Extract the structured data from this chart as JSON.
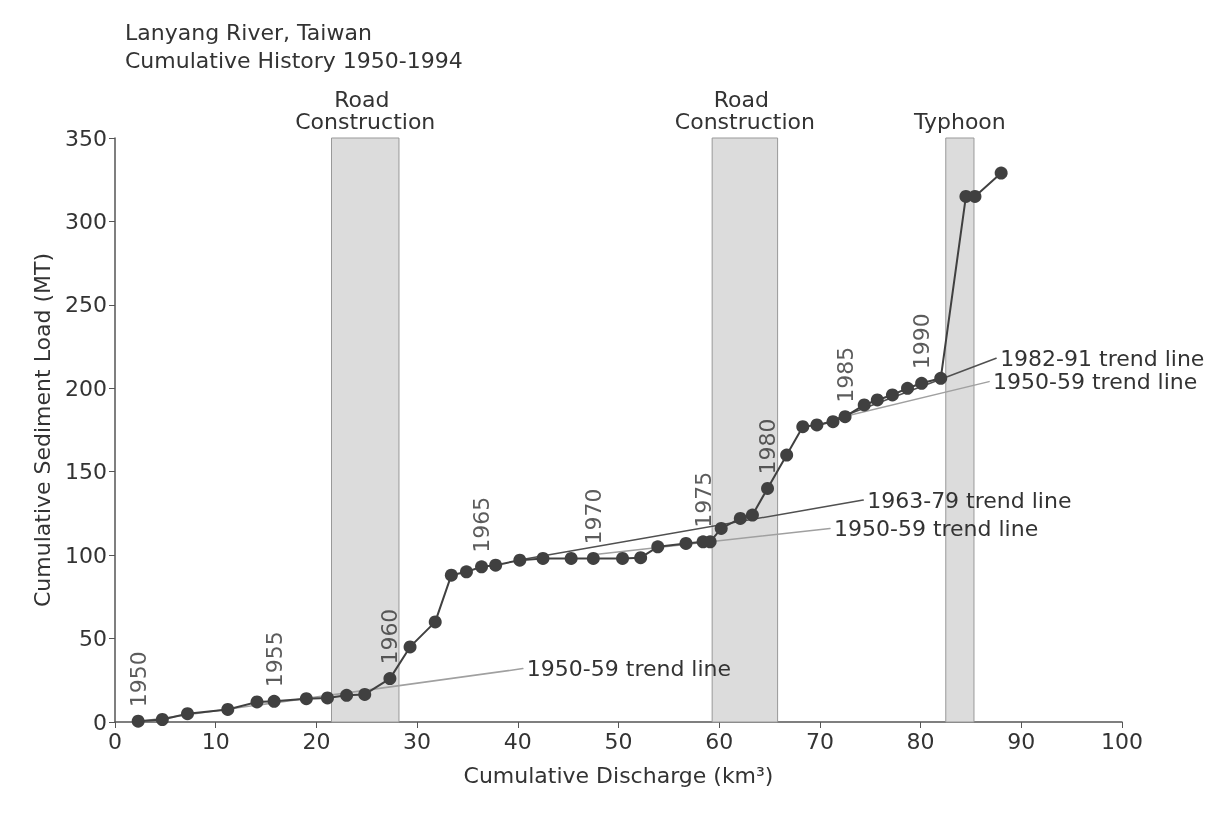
{
  "chart_data": {
    "type": "line",
    "title": "Lanyang River, Taiwan",
    "subtitle": "Cumulative History 1950-1994",
    "xlabel": "Cumulative Discharge (km³)",
    "ylabel": "Cumulative Sediment Load (MT)",
    "xlim": [
      0,
      100
    ],
    "xticks": [
      0,
      10,
      20,
      30,
      40,
      50,
      60,
      70,
      80,
      90,
      100
    ],
    "ylim": [
      0,
      350
    ],
    "yticks": [
      0,
      50,
      100,
      150,
      200,
      250,
      300,
      350
    ],
    "grid": false,
    "legend": false,
    "marker": "circle",
    "line_style": "solid",
    "series": [
      {
        "color": "#404040",
        "x": [
          2.3,
          4.7,
          7.2,
          11.2,
          14.1,
          15.8,
          19,
          21.1,
          23,
          24.8,
          27.3,
          29.3,
          31.8,
          33.4,
          34.9,
          36.4,
          37.8,
          40.2,
          42.5,
          45.3,
          47.5,
          50.4,
          52.2,
          53.9,
          56.7,
          58.4,
          59.1,
          60.2,
          62.1,
          63.3,
          64.8,
          66.7,
          68.3,
          69.7,
          71.3,
          72.5,
          74.4,
          75.7,
          77.2,
          78.7,
          80.1,
          82,
          84.5,
          85.4,
          88
        ],
        "values": [
          0.5,
          1.5,
          5,
          7.5,
          12,
          12.4,
          14,
          14.4,
          16,
          16.5,
          26,
          45,
          60,
          88,
          90,
          93,
          94,
          97,
          98,
          98,
          98,
          98,
          98.5,
          105,
          107,
          108,
          108,
          116,
          122,
          124,
          140,
          160,
          177,
          178,
          180,
          183,
          190,
          193,
          196,
          200,
          203,
          206,
          315,
          315,
          329
        ]
      },
      {
        "name": "1950-59 trend line",
        "type": "line",
        "marker": "none",
        "color": "#a0a0a0",
        "x": [
          2,
          40.5
        ],
        "values": [
          0,
          32
        ]
      },
      {
        "name": "1950-59 trend line",
        "type": "line",
        "marker": "none",
        "color": "#a0a0a0",
        "x": [
          47,
          71
        ],
        "values": [
          100,
          116
        ]
      },
      {
        "name": "1950-59 trend line",
        "type": "line",
        "marker": "none",
        "color": "#a0a0a0",
        "x": [
          71,
          86.8
        ],
        "values": [
          181,
          204
        ]
      },
      {
        "name": "1963-79 trend line",
        "type": "line",
        "marker": "none",
        "color": "#505050",
        "x": [
          40,
          74.3
        ],
        "values": [
          97,
          133
        ]
      },
      {
        "name": "1982-91 trend line",
        "type": "line",
        "marker": "none",
        "color": "#505050",
        "x": [
          70,
          87.5
        ],
        "values": [
          178,
          218
        ]
      }
    ],
    "bands": [
      {
        "axis": "x",
        "from": 21.5,
        "to": 28.2,
        "label": "Road Construction",
        "color": "#dcdcdc"
      },
      {
        "axis": "x",
        "from": 59.3,
        "to": 65.8,
        "label": "Road Construction",
        "color": "#dcdcdc"
      },
      {
        "axis": "x",
        "from": 82.5,
        "to": 85.3,
        "label": "Typhoon",
        "color": "#dcdcdc"
      }
    ],
    "annotations": [
      {
        "text": "1950",
        "x": 2.3,
        "y": 0.5
      },
      {
        "text": "1955",
        "x": 15.8,
        "y": 12.4
      },
      {
        "text": "1960",
        "x": 27.3,
        "y": 26
      },
      {
        "text": "1965",
        "x": 36.4,
        "y": 93
      },
      {
        "text": "1970",
        "x": 47.5,
        "y": 98
      },
      {
        "text": "1975",
        "x": 58.4,
        "y": 108
      },
      {
        "text": "1980",
        "x": 64.8,
        "y": 140
      },
      {
        "text": "1985",
        "x": 72.5,
        "y": 183
      },
      {
        "text": "1990",
        "x": 80.1,
        "y": 203
      }
    ]
  }
}
